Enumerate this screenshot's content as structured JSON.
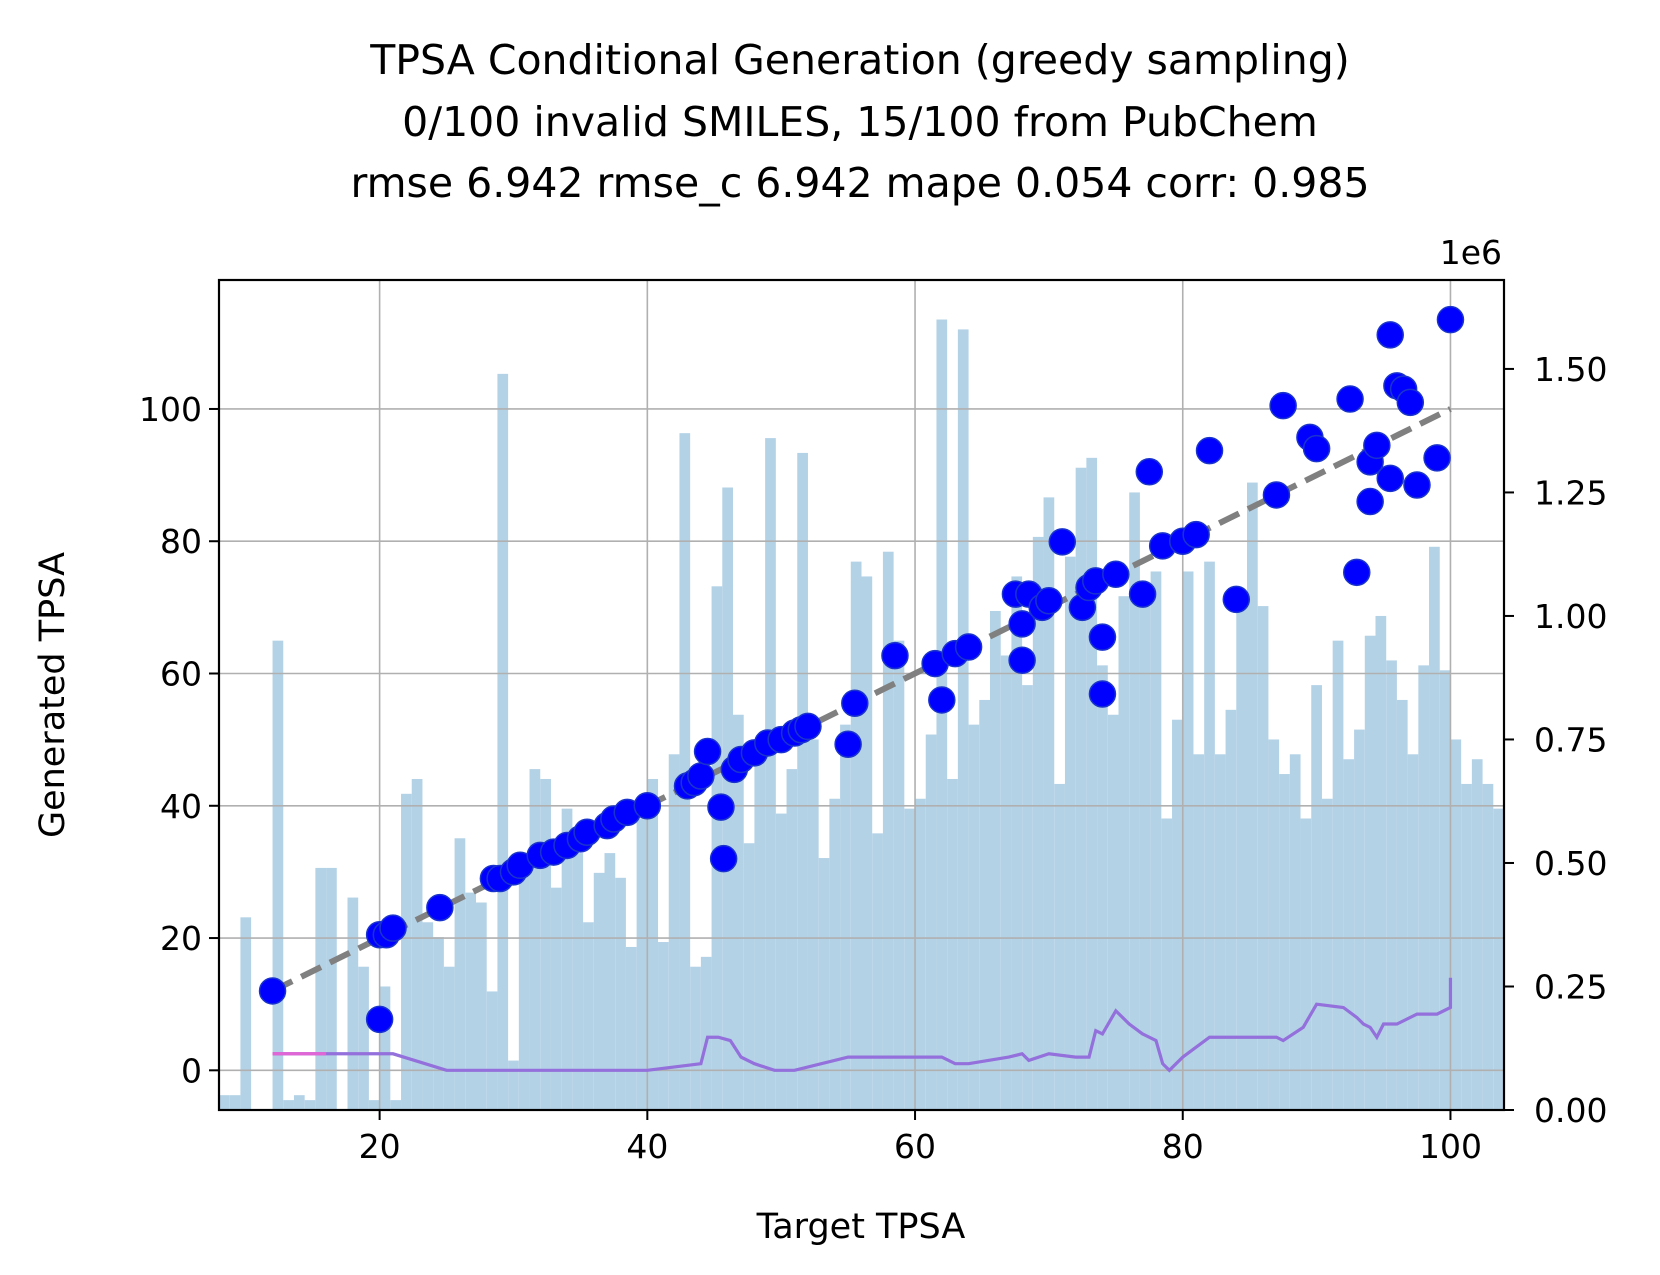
{
  "chart_data": {
    "type": "scatter",
    "title": [
      "TPSA Conditional Generation (greedy sampling)",
      "0/100 invalid SMILES, 15/100 from PubChem",
      "rmse 6.942 rmse_c 6.942 mape 0.054 corr: 0.985"
    ],
    "xlabel": "Target TPSA",
    "ylabel": "Generated TPSA",
    "xlim": [
      8,
      104
    ],
    "ylim": [
      -6,
      119.5
    ],
    "y2lim": [
      0,
      1.68
    ],
    "y2_offset_label": "1e6",
    "xticks": [
      20,
      40,
      60,
      80,
      100
    ],
    "yticks": [
      0,
      20,
      40,
      60,
      80,
      100
    ],
    "y2ticks": [
      0.0,
      0.25,
      0.5,
      0.75,
      1.0,
      1.25,
      1.5
    ],
    "y2ticklabels": [
      "0.00",
      "0.25",
      "0.50",
      "0.75",
      "1.00",
      "1.25",
      "1.50"
    ],
    "grid": true,
    "colors": {
      "points": "#0000ff",
      "points_edge": "#1a33cc",
      "diagonal": "#808080",
      "histogram": "#b4d2e6",
      "error_line": "#9370db",
      "error_line_start": "#e066d6",
      "grid": "#b0b0b0"
    },
    "diagonal": {
      "x": [
        12,
        100
      ],
      "y": [
        12,
        100
      ],
      "style": "dashed"
    },
    "histogram": {
      "bin_start": 8,
      "bin_width": 0.8,
      "counts": [
        0.03,
        0.03,
        0.39,
        0,
        0,
        0.95,
        0.02,
        0.03,
        0.02,
        0.49,
        0.49,
        0,
        0.43,
        0.29,
        0.02,
        0.25,
        0.02,
        0.64,
        0.67,
        0.38,
        0.35,
        0.29,
        0.55,
        0.44,
        0.42,
        0.24,
        1.49,
        0.1,
        0.5,
        0.69,
        0.67,
        0.45,
        0.61,
        0.52,
        0.38,
        0.48,
        0.52,
        0.47,
        0.33,
        0.59,
        0.67,
        0.34,
        0.72,
        1.37,
        0.29,
        0.31,
        1.06,
        1.26,
        0.8,
        0.54,
        0.74,
        1.36,
        0.6,
        0.69,
        1.33,
        0.75,
        0.51,
        0.63,
        0.78,
        1.11,
        1.08,
        0.56,
        1.13,
        0.95,
        0.61,
        0.63,
        0.76,
        1.6,
        0.67,
        1.58,
        0.78,
        0.83,
        1.01,
        0.92,
        1.08,
        0.86,
        1.16,
        1.24,
        0.66,
        1.12,
        1.3,
        1.32,
        0.9,
        0.8,
        1.04,
        1.25,
        1.02,
        1.09,
        0.59,
        0.79,
        1.09,
        0.72,
        1.11,
        0.72,
        0.81,
        1.02,
        1.27,
        1.02,
        0.75,
        0.68,
        0.72,
        0.59,
        0.86,
        0.63,
        0.95,
        0.71,
        0.77,
        0.96,
        1.0,
        0.91,
        0.83,
        0.72,
        0.9,
        1.14,
        0.89,
        0.75,
        0.66,
        0.71,
        0.66,
        0.61,
        0.57,
        0.62,
        0.38,
        0.79,
        0.61,
        0.41,
        0.35,
        0.56,
        0.42,
        0.54,
        0.49,
        0.39,
        0.39,
        0.36,
        0.43,
        0.38,
        0.34,
        0.41
      ]
    },
    "error_line": {
      "x": [
        12,
        21,
        25,
        30,
        35,
        40,
        44,
        44.5,
        45.3,
        46.2,
        47,
        48,
        49.5,
        51,
        55,
        60,
        62,
        63,
        64,
        67,
        68,
        68.5,
        70,
        72,
        73,
        73.5,
        74,
        75,
        76,
        77,
        78,
        78.5,
        79,
        80,
        82,
        84,
        86,
        87,
        87.5,
        89,
        90,
        92,
        93,
        93.5,
        94,
        94.5,
        95,
        96,
        97.5,
        99,
        100,
        100
      ],
      "y": [
        2.5,
        2.5,
        0,
        0,
        0,
        0,
        1,
        5,
        5,
        4.5,
        2,
        1,
        0,
        0,
        2,
        2,
        2,
        1,
        1,
        2,
        2.5,
        1.5,
        2.5,
        2,
        2,
        6,
        5.5,
        9,
        7,
        5.5,
        4.5,
        1,
        0,
        2,
        5,
        5,
        5,
        5,
        4.5,
        6.5,
        10,
        9.5,
        8,
        7,
        6.5,
        5,
        7,
        7,
        8.5,
        8.5,
        9.5,
        14
      ]
    },
    "points": {
      "x": [
        12,
        20,
        20,
        20.5,
        21,
        24.5,
        28.5,
        29,
        30,
        30.5,
        32,
        33,
        34,
        35,
        35.5,
        37,
        37.5,
        38.5,
        40,
        43,
        43.5,
        44,
        44.5,
        45.5,
        45.7,
        46.5,
        47,
        48,
        49,
        50,
        51,
        51.5,
        52,
        55,
        55.5,
        58.5,
        61.5,
        62,
        63,
        64,
        67.5,
        68,
        68,
        68.5,
        69.5,
        70,
        71,
        72.5,
        73,
        73.5,
        74,
        74,
        75,
        77,
        77.5,
        78.5,
        80,
        81,
        82,
        84,
        87,
        87.5,
        89.5,
        90,
        92.5,
        93,
        94,
        94,
        94.5,
        95.5,
        95.5,
        96,
        96.5,
        97,
        97.5,
        99,
        100
      ],
      "y": [
        12,
        7.7,
        20.5,
        20.5,
        21.5,
        24.6,
        29,
        29,
        30,
        31,
        32.5,
        33,
        34,
        35,
        36,
        37,
        38,
        39,
        40,
        43,
        43.5,
        44.5,
        48.2,
        39.8,
        32,
        45.5,
        47,
        48,
        49.5,
        50,
        51,
        51.5,
        52,
        49.3,
        55.5,
        62.7,
        61.5,
        56,
        63,
        64,
        72,
        67.5,
        62,
        72,
        70,
        71,
        79.9,
        70,
        73,
        74,
        65.5,
        56.9,
        75,
        72,
        90.5,
        79.3,
        80,
        81,
        93.7,
        71.2,
        87,
        100.5,
        95.7,
        94,
        101.5,
        75.3,
        86,
        92,
        94.5,
        89.5,
        111.2,
        103.5,
        103,
        101,
        88.5,
        92.6,
        113.5
      ]
    }
  }
}
